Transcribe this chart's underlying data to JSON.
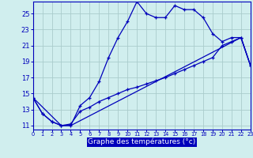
{
  "xlabel": "Graphe des températures (°c)",
  "bg_color": "#c8e8e8",
  "plot_bg_color": "#d0eeee",
  "grid_color": "#aacccc",
  "line_color": "#0000bb",
  "label_bg_color": "#0000bb",
  "label_fg_color": "#ffffff",
  "xlim": [
    0,
    23
  ],
  "ylim": [
    10.5,
    26.5
  ],
  "yticks": [
    11,
    13,
    15,
    17,
    19,
    21,
    23,
    25
  ],
  "xticks": [
    0,
    1,
    2,
    3,
    4,
    5,
    6,
    7,
    8,
    9,
    10,
    11,
    12,
    13,
    14,
    15,
    16,
    17,
    18,
    19,
    20,
    21,
    22,
    23
  ],
  "curve1_x": [
    0,
    1,
    2,
    3,
    4,
    5,
    6,
    7,
    8,
    9,
    10,
    11,
    12,
    13,
    14,
    15,
    16,
    17,
    18,
    19,
    20,
    21,
    22,
    23
  ],
  "curve1_y": [
    14.5,
    12.5,
    11.5,
    11.0,
    11.0,
    13.5,
    14.5,
    16.5,
    19.5,
    22.0,
    24.0,
    26.5,
    25.0,
    24.5,
    24.5,
    26.0,
    25.5,
    25.5,
    24.5,
    22.5,
    21.5,
    22.0,
    22.0,
    18.5
  ],
  "curve2_x": [
    0,
    1,
    2,
    3,
    4,
    5,
    6,
    7,
    8,
    9,
    10,
    11,
    12,
    13,
    14,
    15,
    16,
    17,
    18,
    19,
    20,
    21,
    22,
    23
  ],
  "curve2_y": [
    14.5,
    12.5,
    11.5,
    11.0,
    11.2,
    12.8,
    13.3,
    14.0,
    14.5,
    15.0,
    15.5,
    15.8,
    16.2,
    16.6,
    17.0,
    17.5,
    18.0,
    18.5,
    19.0,
    19.5,
    21.0,
    21.5,
    22.0,
    18.5
  ],
  "curve3_x": [
    0,
    3,
    4,
    22,
    23
  ],
  "curve3_y": [
    14.5,
    11.0,
    11.0,
    22.0,
    18.5
  ],
  "marker_size": 2.5,
  "line_width": 0.9
}
